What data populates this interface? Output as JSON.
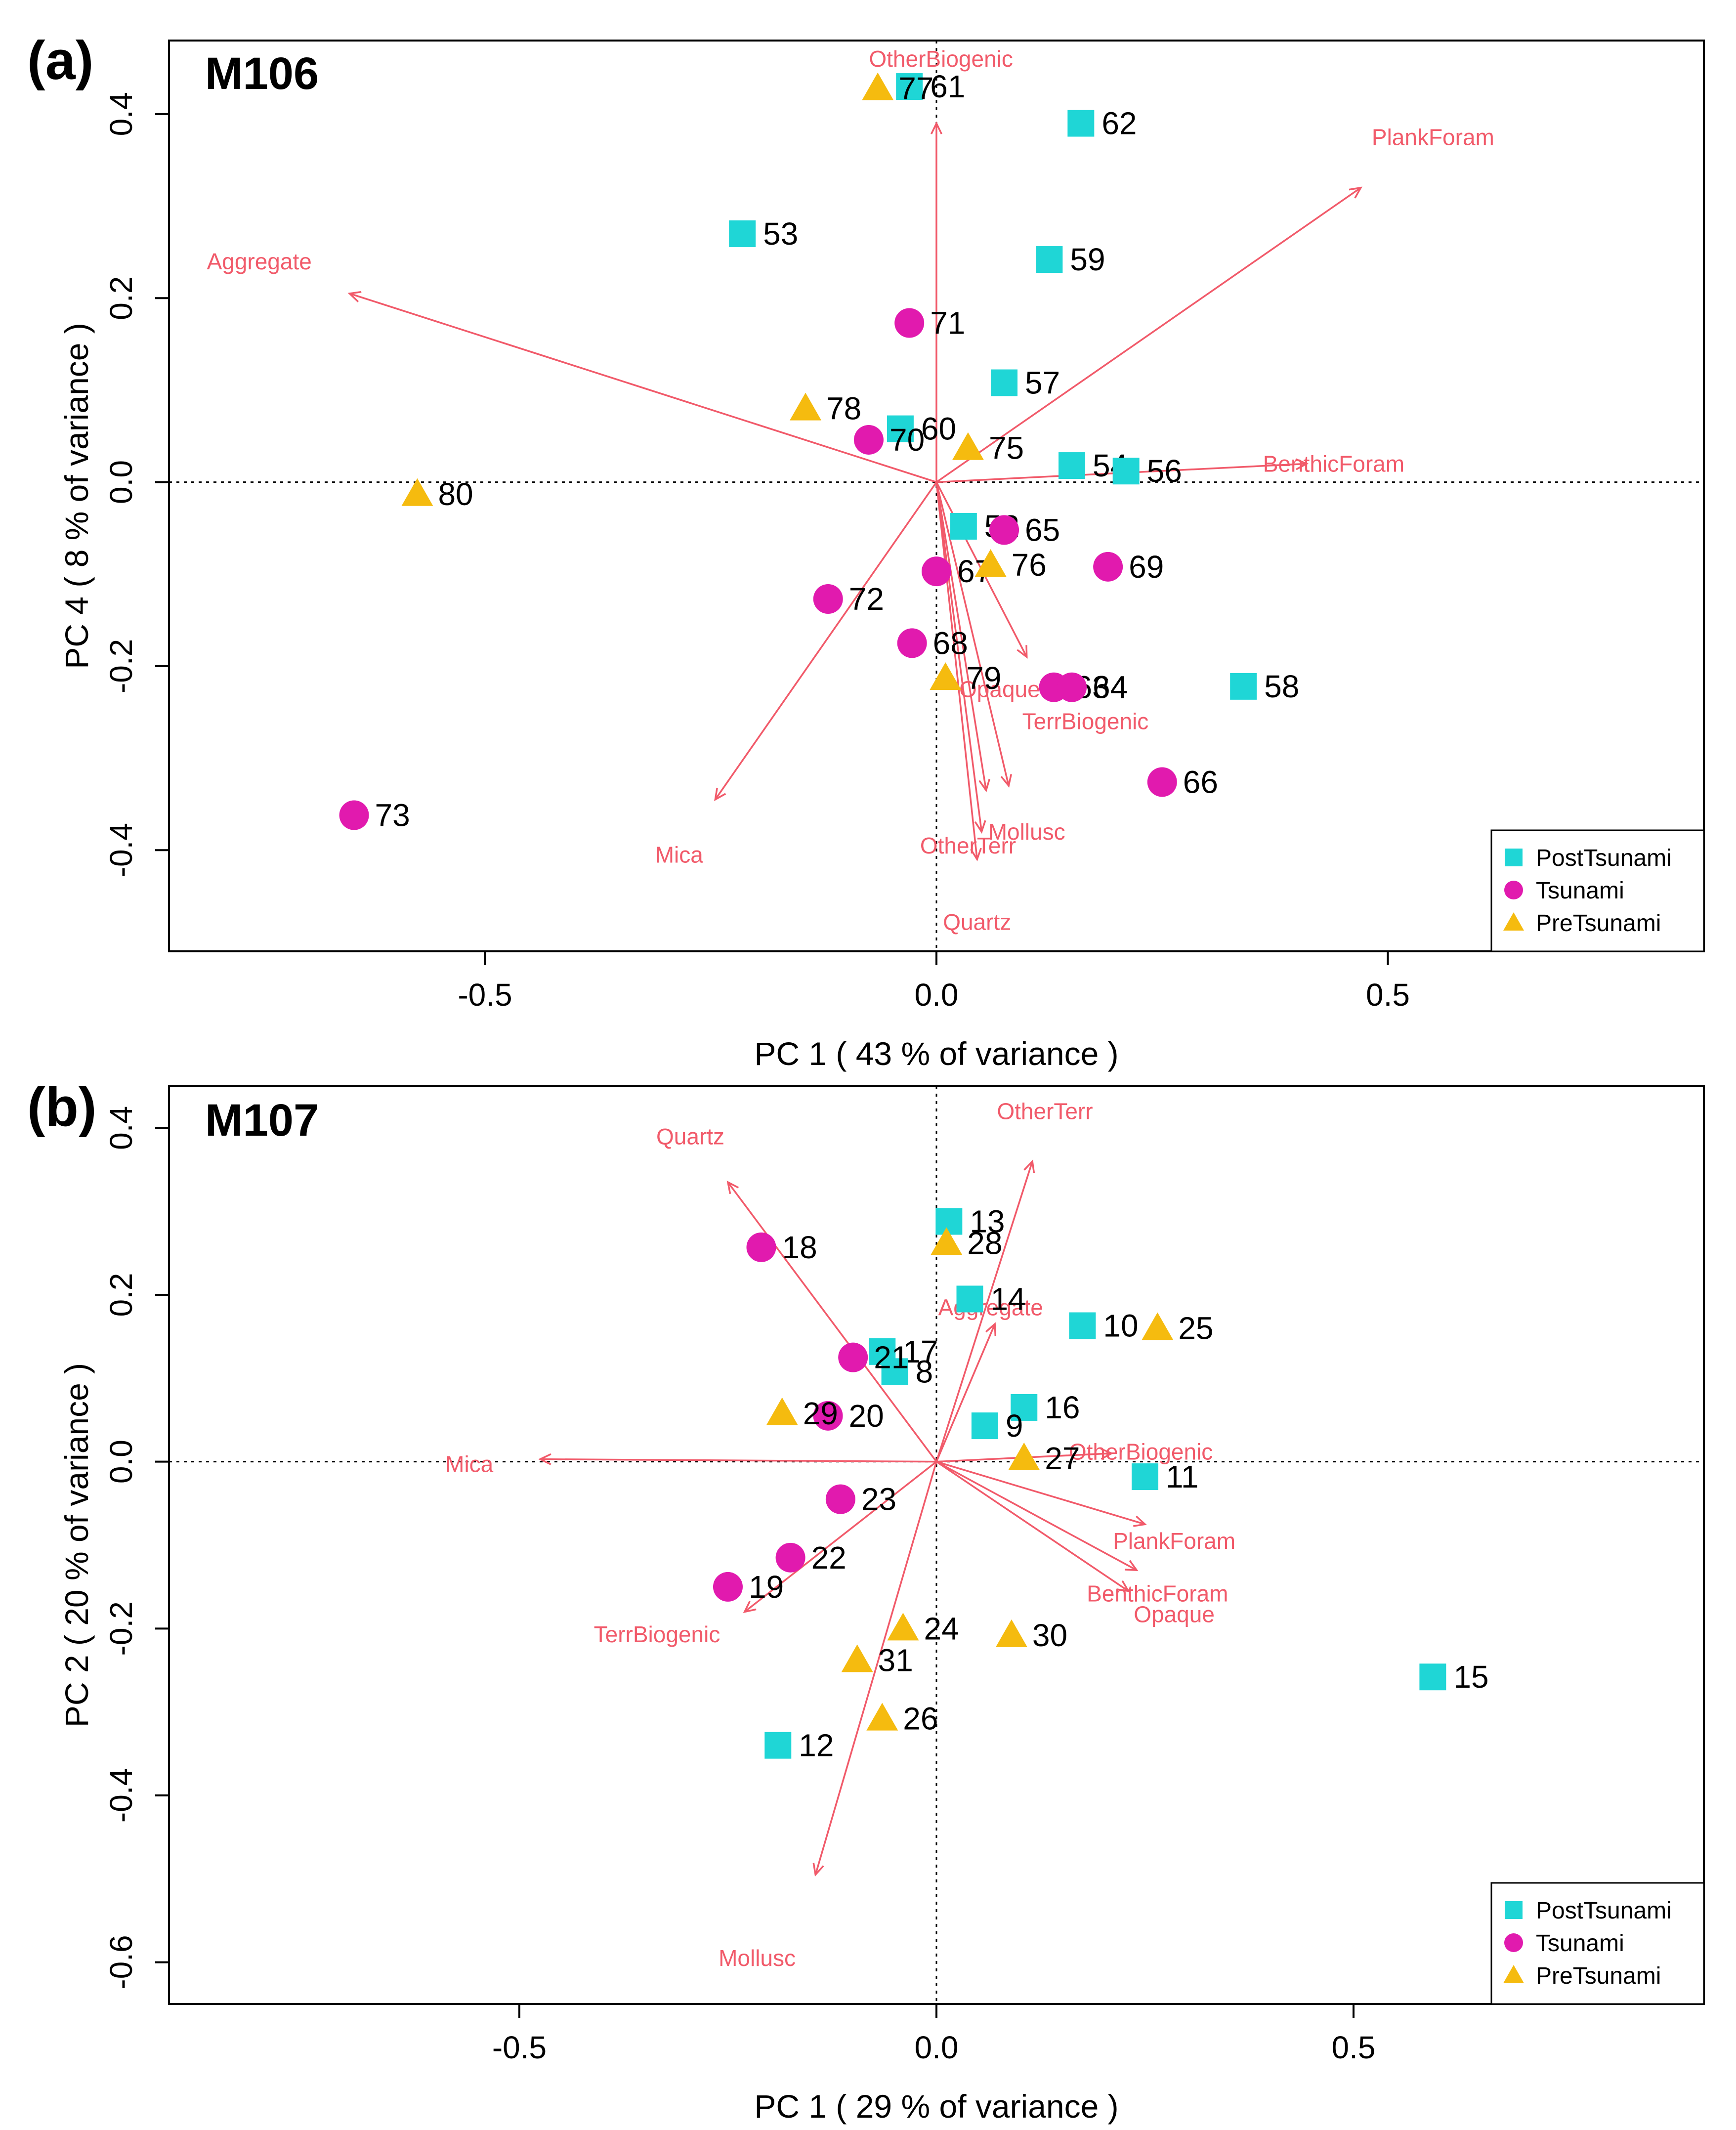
{
  "colors": {
    "PostTsunami": "#1fd6d6",
    "Tsunami": "#e11aae",
    "PreTsunami": "#f5bb0f",
    "loading": "#f15a6a",
    "axis": "#000000",
    "background": "#ffffff"
  },
  "chart_data": [
    {
      "type": "scatter",
      "panel_label": "(a)",
      "title": "M106",
      "xlabel": "PC 1  ( 43 % of variance )",
      "ylabel": "PC 4  ( 8 % of variance )",
      "xlim": [
        -0.85,
        0.85
      ],
      "ylim": [
        -0.51,
        0.48
      ],
      "xticks": [
        -0.5,
        0.0,
        0.5
      ],
      "xtick_labels": [
        "-0.5",
        "0.0",
        "0.5"
      ],
      "yticks": [
        -0.4,
        -0.2,
        0.0,
        0.2,
        0.4
      ],
      "ytick_labels": [
        "-0.4",
        "-0.2",
        "0.0",
        "0.2",
        "0.4"
      ],
      "legend": {
        "position": "bottom-right",
        "entries": [
          "PostTsunami",
          "Tsunami",
          "PreTsunami"
        ]
      },
      "loadings": [
        {
          "name": "OtherBiogenic",
          "x": 0.0,
          "y": 0.39,
          "lx": 0.005,
          "ly": 0.46
        },
        {
          "name": "PlankForam",
          "x": 0.47,
          "y": 0.32,
          "lx": 0.55,
          "ly": 0.375
        },
        {
          "name": "Aggregate",
          "x": -0.65,
          "y": 0.205,
          "lx": -0.75,
          "ly": 0.24
        },
        {
          "name": "BenthicForam",
          "x": 0.41,
          "y": 0.02,
          "lx": 0.44,
          "ly": 0.02
        },
        {
          "name": "Opaque",
          "x": 0.1,
          "y": -0.19,
          "lx": 0.07,
          "ly": -0.225
        },
        {
          "name": "TerrBiogenic",
          "x": 0.08,
          "y": -0.33,
          "lx": 0.165,
          "ly": -0.26
        },
        {
          "name": "Mollusc",
          "x": 0.055,
          "y": -0.335,
          "lx": 0.1,
          "ly": -0.38
        },
        {
          "name": "OtherTerr",
          "x": 0.05,
          "y": -0.38,
          "lx": 0.035,
          "ly": -0.395
        },
        {
          "name": "Quartz",
          "x": 0.045,
          "y": -0.41,
          "lx": 0.045,
          "ly": -0.478
        },
        {
          "name": "Mica",
          "x": -0.245,
          "y": -0.345,
          "lx": -0.285,
          "ly": -0.405
        }
      ],
      "series": [
        {
          "name": "PostTsunami",
          "marker": "square",
          "points": [
            {
              "label": "61",
              "x": -0.03,
              "y": 0.43
            },
            {
              "label": "62",
              "x": 0.16,
              "y": 0.39
            },
            {
              "label": "53",
              "x": -0.215,
              "y": 0.27
            },
            {
              "label": "59",
              "x": 0.125,
              "y": 0.242
            },
            {
              "label": "57",
              "x": 0.075,
              "y": 0.108
            },
            {
              "label": "60",
              "x": -0.04,
              "y": 0.058
            },
            {
              "label": "54",
              "x": 0.15,
              "y": 0.018
            },
            {
              "label": "56",
              "x": 0.21,
              "y": 0.012
            },
            {
              "label": "52",
              "x": 0.03,
              "y": -0.048
            },
            {
              "label": "58",
              "x": 0.34,
              "y": -0.222
            }
          ]
        },
        {
          "name": "Tsunami",
          "marker": "circle",
          "points": [
            {
              "label": "71",
              "x": -0.03,
              "y": 0.173
            },
            {
              "label": "70",
              "x": -0.075,
              "y": 0.046
            },
            {
              "label": "65",
              "x": 0.075,
              "y": -0.052
            },
            {
              "label": "69",
              "x": 0.19,
              "y": -0.092
            },
            {
              "label": "67",
              "x": 0.0,
              "y": -0.097
            },
            {
              "label": "72",
              "x": -0.12,
              "y": -0.127
            },
            {
              "label": "68",
              "x": -0.027,
              "y": -0.175
            },
            {
              "label": "63",
              "x": 0.13,
              "y": -0.223
            },
            {
              "label": "64",
              "x": 0.15,
              "y": -0.223
            },
            {
              "label": "66",
              "x": 0.25,
              "y": -0.326
            },
            {
              "label": "73",
              "x": -0.645,
              "y": -0.362
            }
          ]
        },
        {
          "name": "PreTsunami",
          "marker": "triangle",
          "points": [
            {
              "label": "77",
              "x": -0.065,
              "y": 0.428
            },
            {
              "label": "78",
              "x": -0.145,
              "y": 0.08
            },
            {
              "label": "75",
              "x": 0.035,
              "y": 0.037
            },
            {
              "label": "80",
              "x": -0.575,
              "y": -0.013
            },
            {
              "label": "76",
              "x": 0.06,
              "y": -0.09
            },
            {
              "label": "79",
              "x": 0.01,
              "y": -0.213
            }
          ]
        }
      ]
    },
    {
      "type": "scatter",
      "panel_label": "(b)",
      "title": "M107",
      "xlabel": "PC 1  ( 29 % of variance )",
      "ylabel": "PC 2  ( 20 % of variance )",
      "xlim": [
        -0.92,
        0.92
      ],
      "ylim": [
        -0.65,
        0.45
      ],
      "xticks": [
        -0.5,
        0.0,
        0.5
      ],
      "xtick_labels": [
        "-0.5",
        "0.0",
        "0.5"
      ],
      "yticks": [
        -0.6,
        -0.4,
        -0.2,
        0.0,
        0.2,
        0.4
      ],
      "ytick_labels": [
        "-0.6",
        "-0.4",
        "-0.2",
        "0.0",
        "0.2",
        "0.4"
      ],
      "legend": {
        "position": "bottom-right",
        "entries": [
          "PostTsunami",
          "Tsunami",
          "PreTsunami"
        ]
      },
      "loadings": [
        {
          "name": "OtherTerr",
          "x": 0.115,
          "y": 0.36,
          "lx": 0.13,
          "ly": 0.42
        },
        {
          "name": "Quartz",
          "x": -0.25,
          "y": 0.335,
          "lx": -0.295,
          "ly": 0.39
        },
        {
          "name": "Aggregate",
          "x": 0.07,
          "y": 0.165,
          "lx": 0.065,
          "ly": 0.185
        },
        {
          "name": "Mica",
          "x": -0.475,
          "y": 0.003,
          "lx": -0.56,
          "ly": -0.003
        },
        {
          "name": "OtherBiogenic",
          "x": 0.21,
          "y": 0.01,
          "lx": 0.245,
          "ly": 0.012
        },
        {
          "name": "PlankForam",
          "x": 0.25,
          "y": -0.075,
          "lx": 0.285,
          "ly": -0.095
        },
        {
          "name": "BenthicForam",
          "x": 0.24,
          "y": -0.13,
          "lx": 0.265,
          "ly": -0.158
        },
        {
          "name": "Opaque",
          "x": 0.23,
          "y": -0.155,
          "lx": 0.285,
          "ly": -0.183
        },
        {
          "name": "TerrBiogenic",
          "x": -0.23,
          "y": -0.18,
          "lx": -0.335,
          "ly": -0.207
        },
        {
          "name": "Mollusc",
          "x": -0.145,
          "y": -0.495,
          "lx": -0.215,
          "ly": -0.595
        }
      ],
      "series": [
        {
          "name": "PostTsunami",
          "marker": "square",
          "points": [
            {
              "label": "13",
              "x": 0.015,
              "y": 0.288
            },
            {
              "label": "14",
              "x": 0.04,
              "y": 0.195
            },
            {
              "label": "10",
              "x": 0.175,
              "y": 0.163
            },
            {
              "label": "17",
              "x": -0.065,
              "y": 0.132
            },
            {
              "label": "8",
              "x": -0.05,
              "y": 0.108
            },
            {
              "label": "16",
              "x": 0.105,
              "y": 0.065
            },
            {
              "label": "9",
              "x": 0.058,
              "y": 0.043
            },
            {
              "label": "11",
              "x": 0.25,
              "y": -0.018
            },
            {
              "label": "15",
              "x": 0.595,
              "y": -0.258
            },
            {
              "label": "12",
              "x": -0.19,
              "y": -0.34
            }
          ]
        },
        {
          "name": "Tsunami",
          "marker": "circle",
          "points": [
            {
              "label": "18",
              "x": -0.21,
              "y": 0.257
            },
            {
              "label": "21",
              "x": -0.1,
              "y": 0.125
            },
            {
              "label": "20",
              "x": -0.13,
              "y": 0.055
            },
            {
              "label": "23",
              "x": -0.115,
              "y": -0.045
            },
            {
              "label": "22",
              "x": -0.175,
              "y": -0.115
            },
            {
              "label": "19",
              "x": -0.25,
              "y": -0.15
            }
          ]
        },
        {
          "name": "PreTsunami",
          "marker": "triangle",
          "points": [
            {
              "label": "28",
              "x": 0.012,
              "y": 0.262
            },
            {
              "label": "25",
              "x": 0.265,
              "y": 0.16
            },
            {
              "label": "29",
              "x": -0.185,
              "y": 0.058
            },
            {
              "label": "27",
              "x": 0.105,
              "y": 0.004
            },
            {
              "label": "24",
              "x": -0.04,
              "y": -0.2
            },
            {
              "label": "30",
              "x": 0.09,
              "y": -0.208
            },
            {
              "label": "31",
              "x": -0.095,
              "y": -0.238
            },
            {
              "label": "26",
              "x": -0.065,
              "y": -0.308
            }
          ]
        }
      ]
    }
  ]
}
